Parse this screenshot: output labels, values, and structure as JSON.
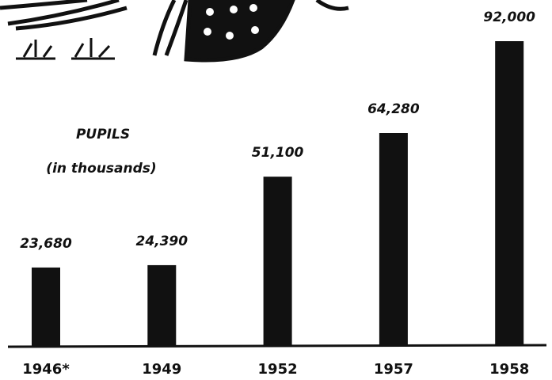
{
  "chart_data": {
    "type": "bar",
    "title": "PUPILS",
    "subtitle": "(in thousands)",
    "categories": [
      "1946*",
      "1949",
      "1952",
      "1957",
      "1958"
    ],
    "values": [
      23680,
      24390,
      51100,
      64280,
      92000
    ],
    "value_labels": [
      "23,680",
      "24,390",
      "51,100",
      "64,280",
      "92,000"
    ],
    "color": "#111111"
  }
}
